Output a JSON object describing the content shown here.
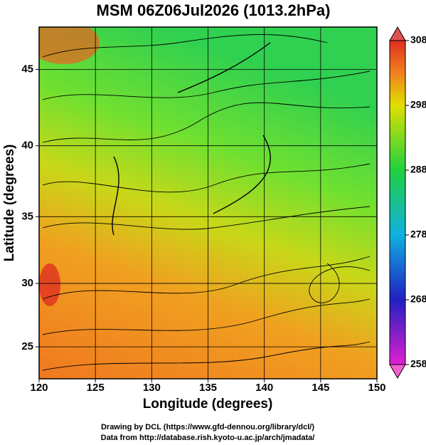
{
  "chart_data": {
    "type": "map",
    "title": "MSM 06Z06Jul2026 (1013.2hPa)",
    "xlabel": "Longitude (degrees)",
    "ylabel": "Latitude  (degrees)",
    "projection": "mercator",
    "xlim": [
      120,
      150
    ],
    "ylim": [
      22.4,
      47.6
    ],
    "xticks": [
      120,
      125,
      130,
      135,
      140,
      145,
      150
    ],
    "yticks": [
      25,
      30,
      35,
      40,
      45
    ],
    "grid": true,
    "colorbar": {
      "lim": [
        258,
        308
      ],
      "ticks": [
        258,
        268,
        278,
        288,
        298,
        308
      ],
      "colors": [
        "#e020d0",
        "#2020c0",
        "#10b0e0",
        "#20d040",
        "#e0e000",
        "#f08020",
        "#e03020"
      ]
    },
    "credits": [
      "Drawing by DCL (https://www.gfd-dennou.org/library/dcl/)",
      "Data from http://database.rish.kyoto-u.ac.jp/arch/jmadata/"
    ]
  }
}
